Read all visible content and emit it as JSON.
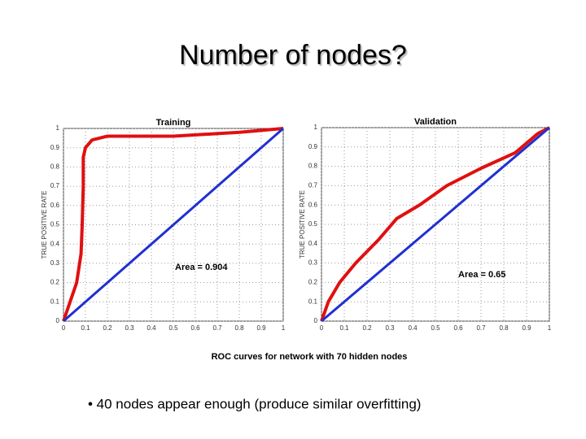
{
  "title": "Number of nodes?",
  "chart_data": [
    {
      "type": "line",
      "title": "Training",
      "ylabel": "TRUE POSITIVE RATE",
      "annotation": "Area = 0.904",
      "xlim": [
        0,
        1
      ],
      "ylim": [
        0,
        1
      ],
      "xticks": [
        0,
        0.1,
        0.2,
        0.3,
        0.4,
        0.5,
        0.6,
        0.7,
        0.8,
        0.9,
        1
      ],
      "yticks": [
        0,
        0.1,
        0.2,
        0.3,
        0.4,
        0.5,
        0.6,
        0.7,
        0.8,
        0.9,
        1
      ],
      "grid": true,
      "series": [
        {
          "color": "#e01010",
          "x": [
            0,
            0.03,
            0.06,
            0.08,
            0.085,
            0.09,
            0.09,
            0.1,
            0.13,
            0.2,
            0.5,
            0.8,
            1
          ],
          "values": [
            0,
            0.1,
            0.2,
            0.35,
            0.5,
            0.7,
            0.85,
            0.9,
            0.94,
            0.96,
            0.96,
            0.98,
            1
          ]
        },
        {
          "color": "#2030d0",
          "x": [
            0,
            1
          ],
          "values": [
            0,
            1
          ]
        }
      ]
    },
    {
      "type": "line",
      "title": "Validation",
      "ylabel": "TRUE POSITIVE RATE",
      "annotation": "Area = 0.65",
      "xlim": [
        0,
        1
      ],
      "ylim": [
        0,
        1
      ],
      "xticks": [
        0,
        0.1,
        0.2,
        0.3,
        0.4,
        0.5,
        0.6,
        0.7,
        0.8,
        0.9,
        1
      ],
      "yticks": [
        0,
        0.1,
        0.2,
        0.3,
        0.4,
        0.5,
        0.6,
        0.7,
        0.8,
        0.9,
        1
      ],
      "grid": true,
      "series": [
        {
          "color": "#e01010",
          "x": [
            0,
            0.03,
            0.08,
            0.15,
            0.25,
            0.33,
            0.43,
            0.55,
            0.7,
            0.85,
            0.95,
            1
          ],
          "values": [
            0,
            0.1,
            0.2,
            0.3,
            0.42,
            0.53,
            0.6,
            0.7,
            0.79,
            0.87,
            0.97,
            1
          ]
        },
        {
          "color": "#2030d0",
          "x": [
            0,
            1
          ],
          "values": [
            0,
            1
          ]
        }
      ]
    }
  ],
  "caption": "ROC  curves for network with 70 hidden nodes",
  "bullet": "• 40 nodes appear enough (produce similar overfitting)"
}
